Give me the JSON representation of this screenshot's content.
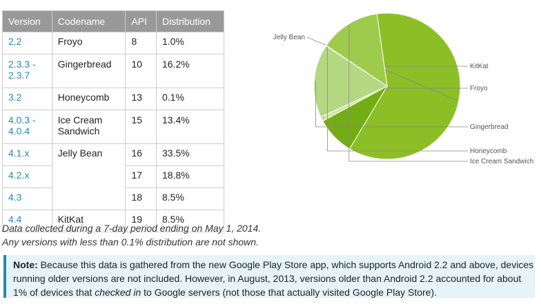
{
  "table": {
    "headers": [
      "Version",
      "Codename",
      "API",
      "Distribution"
    ],
    "rows": [
      {
        "version": "2.2",
        "codename": "Froyo",
        "api": "8",
        "distribution": "1.0%"
      },
      {
        "version": "2.3.3 -\n2.3.7",
        "codename": "Gingerbread",
        "api": "10",
        "distribution": "16.2%"
      },
      {
        "version": "3.2",
        "codename": "Honeycomb",
        "api": "13",
        "distribution": "0.1%"
      },
      {
        "version": "4.0.3 -\n4.0.4",
        "codename": "Ice Cream\nSandwich",
        "api": "15",
        "distribution": "13.4%"
      },
      {
        "version": "4.1.x",
        "codename": "Jelly Bean",
        "api": "16",
        "distribution": "33.5%"
      },
      {
        "version": "4.2.x",
        "codename": "",
        "api": "17",
        "distribution": "18.8%"
      },
      {
        "version": "4.3",
        "codename": "",
        "api": "18",
        "distribution": "8.5%"
      },
      {
        "version": "4.4",
        "codename": "KitKat",
        "api": "19",
        "distribution": "8.5%"
      }
    ]
  },
  "caption": {
    "line1": "Data collected during a 7-day period ending on May 1, 2014.",
    "line2": "Any versions with less than 0.1% distribution are not shown."
  },
  "note": {
    "label": "Note:",
    "part1": " Because this data is gathered from the new Google Play Store app, which supports Android 2.2 and above, devices running older versions are not included. However, in August, 2013, versions older than Android 2.2 accounted for about 1% of devices that ",
    "emphasis": "checked in",
    "part2": " to Google servers (not those that actually visited Google Play Store)."
  },
  "chart_data": {
    "type": "pie",
    "slices": [
      {
        "label": "Jelly Bean",
        "value": 60.8,
        "color": "#8cbf26"
      },
      {
        "label": "KitKat",
        "value": 8.5,
        "color": "#72ad13"
      },
      {
        "label": "Froyo",
        "value": 1.0,
        "color": "#cfe5a3"
      },
      {
        "label": "Gingerbread",
        "value": 16.2,
        "color": "#b4d882"
      },
      {
        "label": "Honeycomb",
        "value": 0.1,
        "color": "#a7cf6a"
      },
      {
        "label": "Ice Cream Sandwich",
        "value": 13.4,
        "color": "#9fcb4c"
      }
    ]
  }
}
